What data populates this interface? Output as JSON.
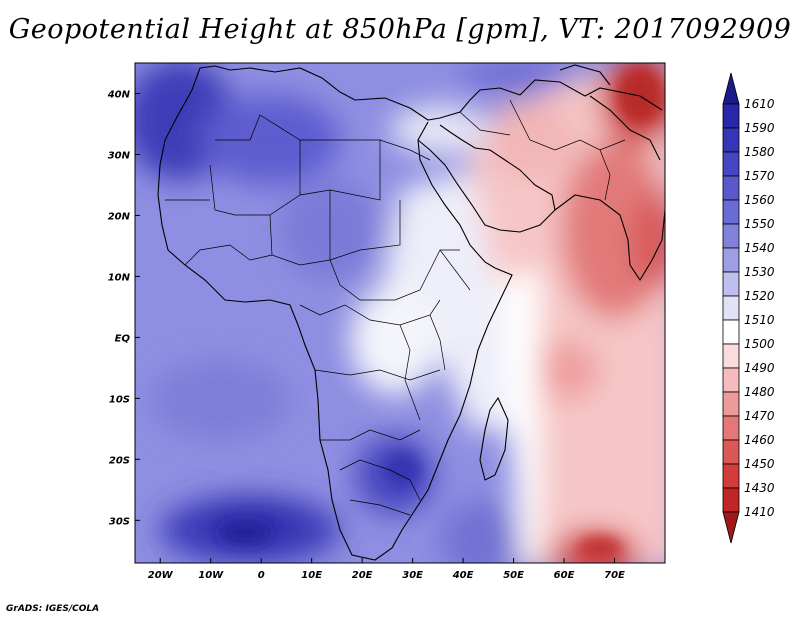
{
  "title": "Geopotential Height at 850hPa [gpm], VT: 2017092909",
  "credit": "GrADS: IGES/COLA",
  "map": {
    "lon_range": [
      -25,
      80
    ],
    "lat_range": [
      -37,
      45
    ],
    "lat_ticks": [
      {
        "value": 40,
        "label": "40N"
      },
      {
        "value": 30,
        "label": "30N"
      },
      {
        "value": 20,
        "label": "20N"
      },
      {
        "value": 10,
        "label": "10N"
      },
      {
        "value": 0,
        "label": "EQ"
      },
      {
        "value": -10,
        "label": "10S"
      },
      {
        "value": -20,
        "label": "20S"
      },
      {
        "value": -30,
        "label": "30S"
      }
    ],
    "lon_ticks": [
      {
        "value": -20,
        "label": "20W"
      },
      {
        "value": -10,
        "label": "10W"
      },
      {
        "value": 0,
        "label": "0"
      },
      {
        "value": 10,
        "label": "10E"
      },
      {
        "value": 20,
        "label": "20E"
      },
      {
        "value": 30,
        "label": "30E"
      },
      {
        "value": 40,
        "label": "40E"
      },
      {
        "value": 50,
        "label": "50E"
      },
      {
        "value": 60,
        "label": "60E"
      },
      {
        "value": 70,
        "label": "70E"
      }
    ]
  },
  "colorbar": {
    "levels": [
      {
        "label": "1610",
        "color": "#1b1b8c"
      },
      {
        "label": "1590",
        "color": "#2727a8"
      },
      {
        "label": "1580",
        "color": "#3535b8"
      },
      {
        "label": "1570",
        "color": "#4646c4"
      },
      {
        "label": "1560",
        "color": "#5959cc"
      },
      {
        "label": "1550",
        "color": "#6b6bd4"
      },
      {
        "label": "1540",
        "color": "#8282dc"
      },
      {
        "label": "1530",
        "color": "#9e9ee6"
      },
      {
        "label": "1520",
        "color": "#bebeef"
      },
      {
        "label": "1510",
        "color": "#e2e2f7"
      },
      {
        "label": "1500",
        "color": "#ffffff"
      },
      {
        "label": "1490",
        "color": "#fadcdc"
      },
      {
        "label": "1480",
        "color": "#f4bcbc"
      },
      {
        "label": "1470",
        "color": "#ec9a9a"
      },
      {
        "label": "1460",
        "color": "#e47878"
      },
      {
        "label": "1450",
        "color": "#dc5858"
      },
      {
        "label": "1430",
        "color": "#d23c3c"
      },
      {
        "label": "1410",
        "color": "#c02626"
      },
      {
        "label": "",
        "color": "#a01818"
      }
    ]
  }
}
